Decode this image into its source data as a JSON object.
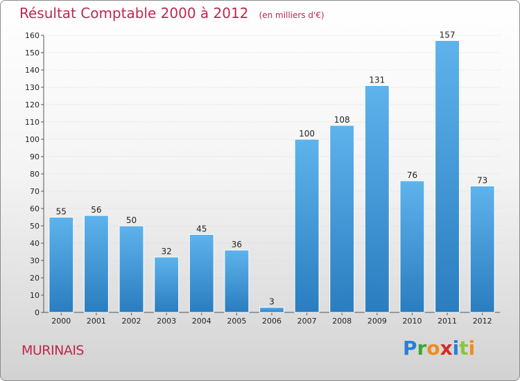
{
  "header": {
    "title": "Résultat Comptable 2000 à 2012",
    "subtitle": "(en milliers d'€)"
  },
  "footer": {
    "town": "MURINAIS",
    "logo_text": "Proxiti"
  },
  "colors": {
    "title": "#c0264f",
    "bar_top": "#5eb3ec",
    "bar_bottom": "#2a7dbf"
  },
  "chart_data": {
    "type": "bar",
    "title": "Résultat Comptable 2000 à 2012",
    "subtitle": "(en milliers d'€)",
    "categories": [
      "2000",
      "2001",
      "2002",
      "2003",
      "2004",
      "2005",
      "2006",
      "2007",
      "2008",
      "2009",
      "2010",
      "2011",
      "2012"
    ],
    "values": [
      55,
      56,
      50,
      32,
      45,
      36,
      3,
      100,
      108,
      131,
      76,
      157,
      73
    ],
    "ylim": [
      0,
      160
    ],
    "yticks": [
      0,
      10,
      20,
      30,
      40,
      50,
      60,
      70,
      80,
      90,
      100,
      110,
      120,
      130,
      140,
      150,
      160
    ],
    "grid": true,
    "data_labels": true
  }
}
